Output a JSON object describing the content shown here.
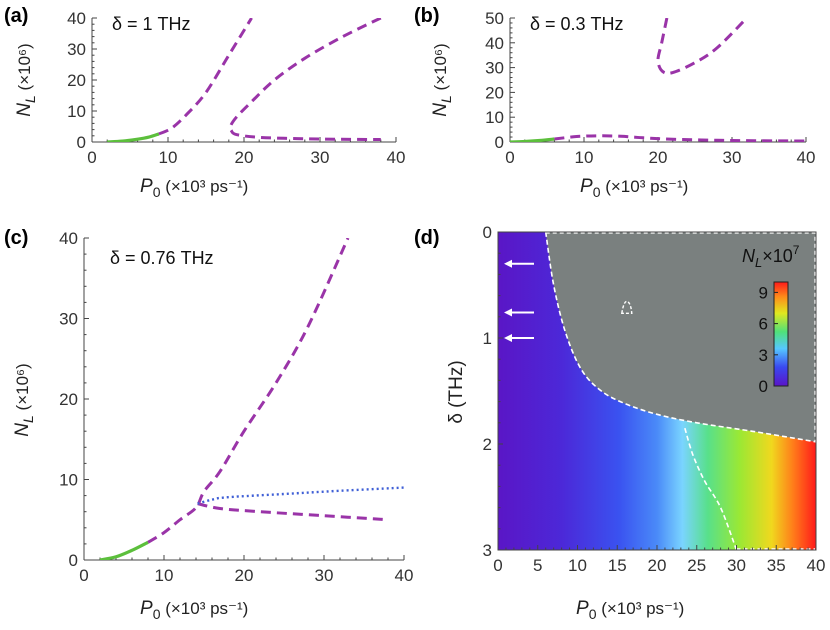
{
  "chart_data": [
    {
      "id": "a",
      "type": "line",
      "panel_label": "(a)",
      "annotation": "δ = 1 THz",
      "xlabel": {
        "var": "P",
        "sub": "0",
        "unit": "(×10³ ps⁻¹)"
      },
      "ylabel": {
        "var": "N",
        "sub": "L",
        "unit": "(×10⁶)"
      },
      "xlim": [
        0,
        40
      ],
      "ylim": [
        0,
        40
      ],
      "xticks": [
        0,
        10,
        20,
        30,
        40
      ],
      "yticks": [
        0,
        10,
        20,
        30,
        40
      ],
      "series": [
        {
          "style": "stable-solid",
          "color": "#5cbf3c",
          "points": [
            [
              2,
              0
            ],
            [
              4,
              0.3
            ],
            [
              6,
              0.9
            ],
            [
              7.5,
              1.6
            ],
            [
              8.8,
              2.6
            ]
          ]
        },
        {
          "style": "unstable-dashed",
          "color": "#9a34a8",
          "points": [
            [
              8.8,
              2.6
            ],
            [
              10.5,
              4.5
            ],
            [
              12.5,
              9
            ],
            [
              15,
              16
            ],
            [
              18,
              28
            ],
            [
              21,
              40
            ]
          ]
        },
        {
          "style": "unstable-dashed",
          "color": "#9a34a8",
          "points": [
            [
              38,
              40
            ],
            [
              33,
              34
            ],
            [
              28,
              27
            ],
            [
              24,
              20
            ],
            [
              21,
              13
            ],
            [
              19,
              8
            ],
            [
              18.2,
              5
            ],
            [
              18.3,
              3.8
            ],
            [
              19,
              2.4
            ],
            [
              22,
              1.5
            ],
            [
              27,
              1.1
            ],
            [
              32,
              0.9
            ],
            [
              38,
              0.8
            ]
          ]
        }
      ]
    },
    {
      "id": "b",
      "type": "line",
      "panel_label": "(b)",
      "annotation": "δ = 0.3 THz",
      "xlabel": {
        "var": "P",
        "sub": "0",
        "unit": "(×10³ ps⁻¹)"
      },
      "ylabel": {
        "var": "N",
        "sub": "L",
        "unit": "(×10⁶)"
      },
      "xlim": [
        0,
        40
      ],
      "ylim": [
        0,
        50
      ],
      "xticks": [
        0,
        10,
        20,
        30,
        40
      ],
      "yticks": [
        0,
        10,
        20,
        30,
        40,
        50
      ],
      "series": [
        {
          "style": "stable-solid",
          "color": "#5cbf3c",
          "points": [
            [
              0,
              0
            ],
            [
              2,
              0.2
            ],
            [
              4,
              0.6
            ],
            [
              6,
              1.2
            ]
          ]
        },
        {
          "style": "unstable-dashed",
          "color": "#9a34a8",
          "points": [
            [
              6,
              1.2
            ],
            [
              9,
              2.2
            ],
            [
              12,
              2.5
            ],
            [
              15,
              2.3
            ],
            [
              18,
              1.7
            ],
            [
              22,
              1.1
            ],
            [
              28,
              0.7
            ],
            [
              34,
              0.5
            ],
            [
              40,
              0.4
            ]
          ]
        },
        {
          "style": "unstable-dashed",
          "color": "#9a34a8",
          "points": [
            [
              21.2,
              50
            ],
            [
              20.5,
              40
            ],
            [
              20,
              33
            ],
            [
              20.6,
              28.5
            ],
            [
              22,
              28
            ],
            [
              25,
              32
            ],
            [
              28,
              38
            ],
            [
              32,
              50
            ]
          ]
        }
      ]
    },
    {
      "id": "c",
      "type": "line",
      "panel_label": "(c)",
      "annotation": "δ = 0.76 THz",
      "xlabel": {
        "var": "P",
        "sub": "0",
        "unit": "(×10³ ps⁻¹)"
      },
      "ylabel": {
        "var": "N",
        "sub": "L",
        "unit": "(×10⁶)"
      },
      "xlim": [
        0,
        40
      ],
      "ylim": [
        0,
        40
      ],
      "xticks": [
        0,
        10,
        20,
        30,
        40
      ],
      "yticks": [
        0,
        10,
        20,
        30,
        40
      ],
      "series": [
        {
          "style": "stable-solid",
          "color": "#5cbf3c",
          "points": [
            [
              2,
              0
            ],
            [
              4,
              0.4
            ],
            [
              6,
              1.2
            ],
            [
              8,
              2.2
            ]
          ]
        },
        {
          "style": "unstable-dashed",
          "color": "#9a34a8",
          "points": [
            [
              8,
              2.2
            ],
            [
              10,
              3.4
            ],
            [
              12,
              5
            ],
            [
              14,
              6.5
            ],
            [
              15,
              8.5
            ],
            [
              17,
              11
            ],
            [
              20,
              16
            ],
            [
              24,
              22
            ],
            [
              28,
              29
            ],
            [
              33,
              40
            ]
          ]
        },
        {
          "style": "unstable-dashed",
          "color": "#9a34a8",
          "points": [
            [
              14.2,
              7
            ],
            [
              17,
              6.4
            ],
            [
              22,
              6
            ],
            [
              30,
              5.5
            ],
            [
              38,
              5
            ]
          ]
        },
        {
          "style": "dotted",
          "color": "#3f5fd6",
          "points": [
            [
              14.2,
              7
            ],
            [
              16,
              7.5
            ],
            [
              18,
              7.8
            ],
            [
              25,
              8.2
            ],
            [
              32,
              8.6
            ],
            [
              40,
              9
            ]
          ]
        }
      ]
    },
    {
      "id": "d",
      "type": "heatmap",
      "panel_label": "(d)",
      "xlabel": {
        "var": "P",
        "sub": "0",
        "unit": "(×10³ ps⁻¹)"
      },
      "ylabel": {
        "text": "δ (THz)"
      },
      "xlim": [
        0,
        40
      ],
      "ylim": [
        0,
        3
      ],
      "y_inverted": true,
      "xticks": [
        0,
        5,
        10,
        15,
        20,
        25,
        30,
        35,
        40
      ],
      "yticks": [
        0,
        1,
        2,
        3
      ],
      "colorbar": {
        "title": {
          "var": "N",
          "sub": "L",
          "mult": "×10",
          "exp": "7"
        },
        "range": [
          0,
          10
        ],
        "ticks": [
          0,
          3,
          6,
          9
        ],
        "colors": [
          "#5a14c8",
          "#3a48f0",
          "#56c8ff",
          "#4fe07a",
          "#e0e81f",
          "#ff8a1a",
          "#ff1a1a"
        ]
      },
      "gray_region_color": "#7a807f",
      "boundary_color": "#ffffff",
      "gray_boundary": [
        [
          6,
          0
        ],
        [
          7,
          0.5
        ],
        [
          8.5,
          0.95
        ],
        [
          10.5,
          1.3
        ],
        [
          13,
          1.5
        ],
        [
          16,
          1.62
        ],
        [
          20,
          1.72
        ],
        [
          25,
          1.8
        ],
        [
          32,
          1.88
        ],
        [
          40,
          1.98
        ]
      ],
      "inner_boundary": [
        [
          23.5,
          1.85
        ],
        [
          24.5,
          2.1
        ],
        [
          26,
          2.35
        ],
        [
          28,
          2.6
        ],
        [
          30,
          3
        ]
      ],
      "small_loop_center": [
        16.2,
        0.72
      ],
      "arrows_delta": [
        0.3,
        0.76,
        1.0
      ]
    }
  ]
}
